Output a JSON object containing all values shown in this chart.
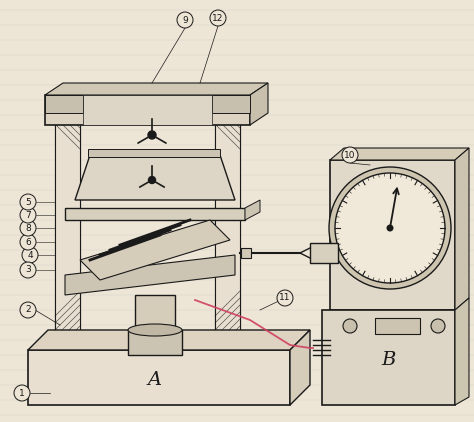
{
  "bg_color": "#ede5d5",
  "line_color": "#1a1a1a",
  "pink_line": "#d04060",
  "figsize": [
    4.74,
    4.22
  ],
  "dpi": 100
}
